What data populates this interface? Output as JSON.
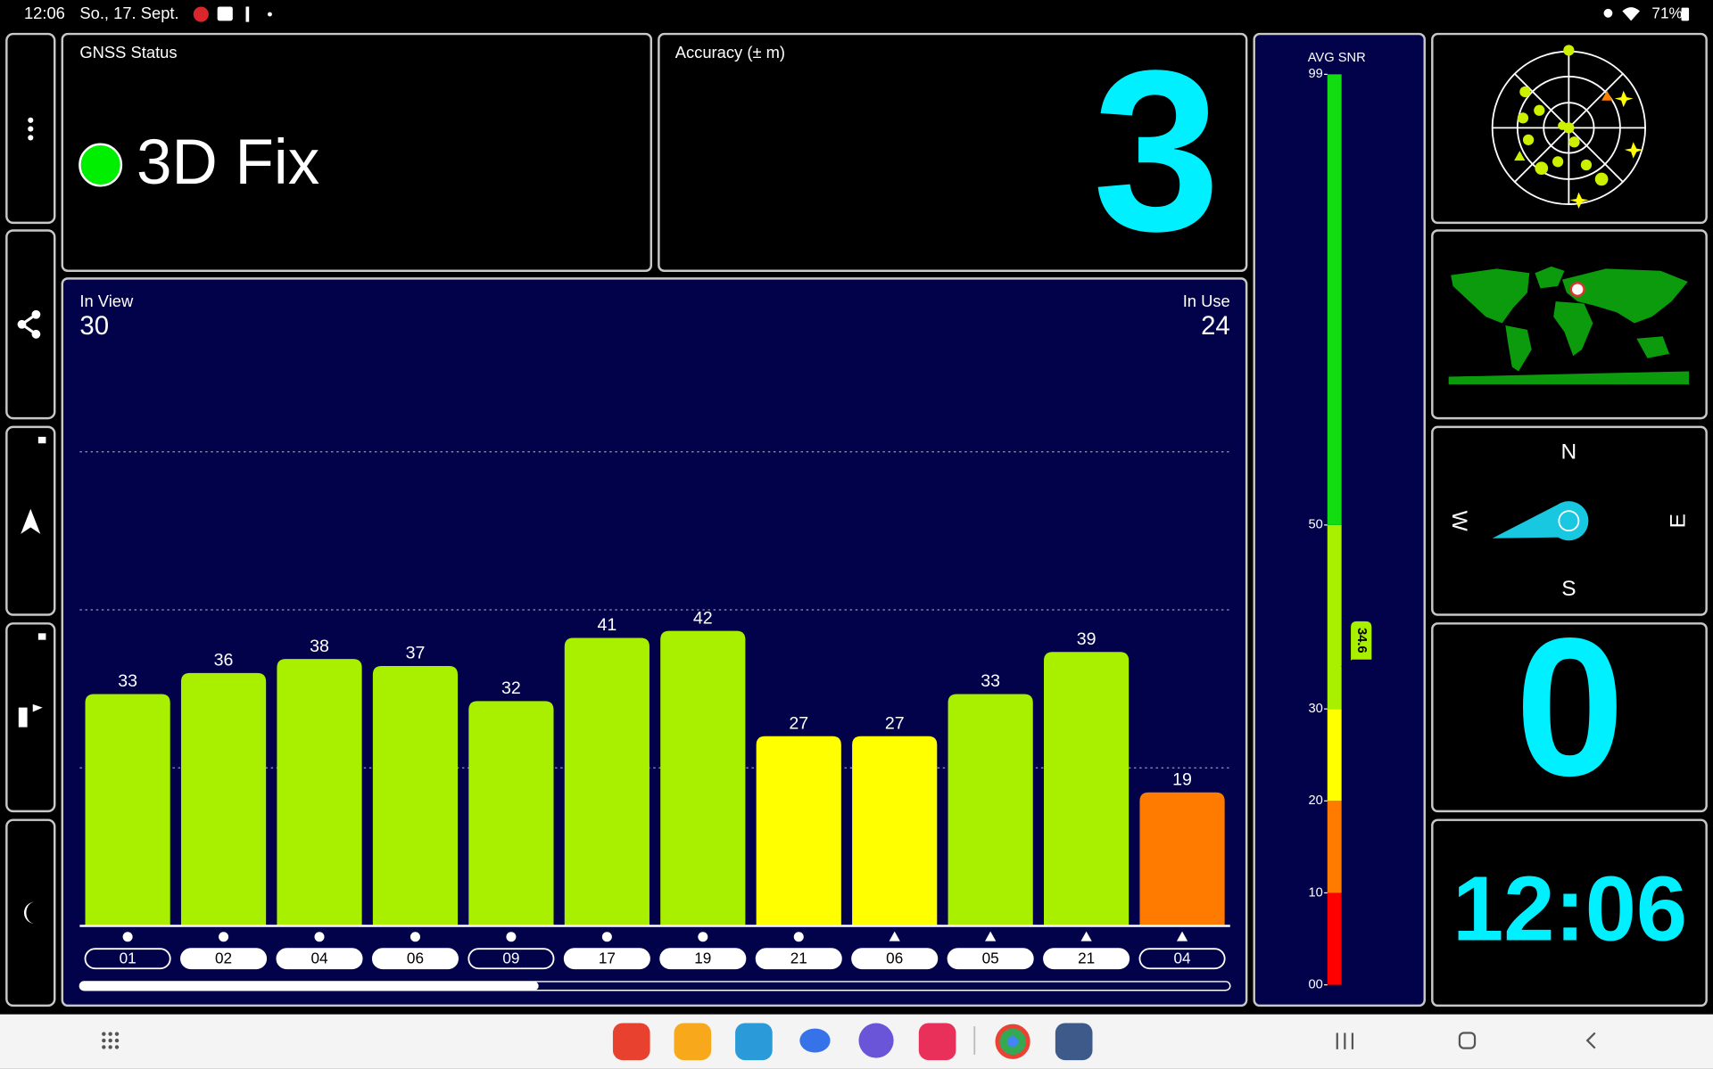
{
  "status_bar": {
    "time": "12:06",
    "date": "So., 17. Sept.",
    "battery": "71%"
  },
  "gnss_status": {
    "title": "GNSS Status",
    "fix": "3D Fix"
  },
  "accuracy": {
    "title": "Accuracy (± m)",
    "value": 3
  },
  "satellites": {
    "in_view_label": "In View",
    "in_view": 30,
    "in_use_label": "In Use",
    "in_use": 24,
    "ylim": [
      0,
      90
    ],
    "gridlines": [
      22.5,
      45,
      67.5
    ],
    "bars": [
      {
        "label": "01",
        "value": 33,
        "marker": "circle",
        "in_use": false
      },
      {
        "label": "02",
        "value": 36,
        "marker": "circle",
        "in_use": true
      },
      {
        "label": "04",
        "value": 38,
        "marker": "circle",
        "in_use": true
      },
      {
        "label": "06",
        "value": 37,
        "marker": "circle",
        "in_use": true
      },
      {
        "label": "09",
        "value": 32,
        "marker": "circle",
        "in_use": false
      },
      {
        "label": "17",
        "value": 41,
        "marker": "circle",
        "in_use": true
      },
      {
        "label": "19",
        "value": 42,
        "marker": "circle",
        "in_use": true
      },
      {
        "label": "21",
        "value": 27,
        "marker": "circle",
        "in_use": true
      },
      {
        "label": "06",
        "value": 27,
        "marker": "triangle",
        "in_use": true
      },
      {
        "label": "05",
        "value": 33,
        "marker": "triangle",
        "in_use": true
      },
      {
        "label": "21",
        "value": 39,
        "marker": "triangle",
        "in_use": true
      },
      {
        "label": "04",
        "value": 19,
        "marker": "triangle",
        "in_use": false
      }
    ]
  },
  "avg_snr": {
    "label": "AVG SNR",
    "value": 34.6,
    "ylim": [
      0,
      99
    ],
    "ticks": [
      {
        "value": 0,
        "label": "00"
      },
      10,
      20,
      30,
      50,
      99
    ],
    "segments": [
      {
        "from": 0,
        "to": 10,
        "color": "#ff0000"
      },
      {
        "from": 10,
        "to": 20,
        "color": "#ff7b00"
      },
      {
        "from": 20,
        "to": 30,
        "color": "#ffff00"
      },
      {
        "from": 30,
        "to": 50,
        "color": "#a8f000"
      },
      {
        "from": 50,
        "to": 99,
        "color": "#11dd11"
      }
    ]
  },
  "compass": {
    "north": "N",
    "south": "S",
    "east": "E",
    "west": "W"
  },
  "speed": {
    "value": 0
  },
  "clock": {
    "time": "12:06"
  }
}
